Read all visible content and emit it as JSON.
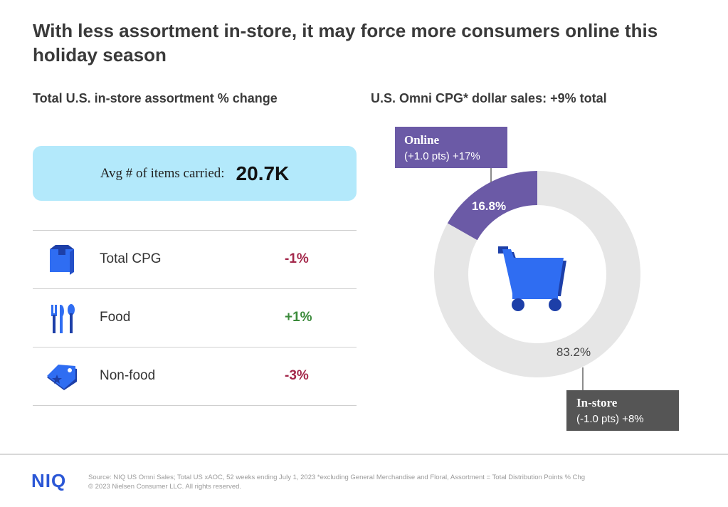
{
  "title": "With less assortment in-store, it may force more consumers online this holiday season",
  "left_section": {
    "heading": "Total U.S. in-store assortment % change",
    "avg_label": "Avg # of items carried:",
    "avg_value": "20.7K",
    "rows": [
      {
        "label": "Total CPG",
        "value": "-1%",
        "icon": "box-icon",
        "color": "#a3274a"
      },
      {
        "label": "Food",
        "value": "+1%",
        "icon": "utensils-icon",
        "color": "#3a8a3a"
      },
      {
        "label": "Non-food",
        "value": "-3%",
        "icon": "tag-icon",
        "color": "#a3274a"
      }
    ]
  },
  "right_section": {
    "heading": "U.S. Omni CPG* dollar sales: +9% total"
  },
  "chart_data": {
    "type": "pie",
    "title": "U.S. Omni CPG* dollar sales: +9% total",
    "slices": [
      {
        "name": "Online",
        "value": 16.8,
        "label": "16.8%",
        "note": "(+1.0 pts) +17%",
        "color": "#6b5aa6"
      },
      {
        "name": "In-store",
        "value": 83.2,
        "label": "83.2%",
        "note": "(-1.0 pts) +8%",
        "color": "#e6e6e6"
      }
    ],
    "center_icon": "shopping-cart-icon"
  },
  "footer": {
    "logo": "NIQ",
    "source_line1": "Source: NIQ US Omni Sales; Total US xAOC, 52 weeks ending July 1, 2023  *excluding General Merchandise and Floral, Assortment = Total Distribution Points % Chg",
    "source_line2": "© 2023 Nielsen Consumer LLC. All rights reserved."
  },
  "colors": {
    "accent_blue": "#2b57d6",
    "icon_blue": "#2f6df2",
    "online_purple": "#6b5aa6",
    "instore_dark": "#555555",
    "avg_box": "#b3e9fb"
  }
}
